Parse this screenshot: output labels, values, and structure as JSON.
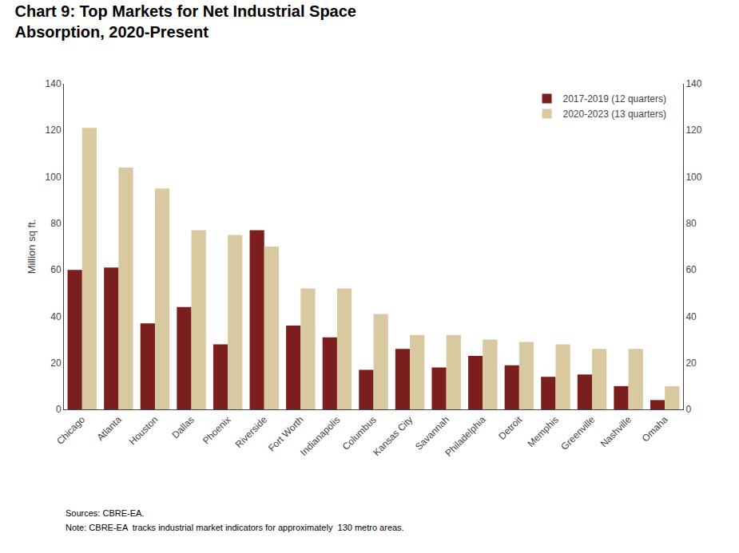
{
  "chart_data": {
    "type": "bar",
    "title": "Chart 9: Top Markets for Net Industrial Space",
    "subtitle": "Absorption, 2020-Present",
    "categories": [
      "Chicago",
      "Atlanta",
      "Houston",
      "Dallas",
      "Phoenix",
      "Riverside",
      "Fort Worth",
      "Indianapolis",
      "Columbus",
      "Kansas City",
      "Savannah",
      "Philadelphia",
      "Detroit",
      "Memphis",
      "Greenville",
      "Nashville",
      "Omaha"
    ],
    "series": [
      {
        "name": "2017-2019 (12 quarters)",
        "color": "#7B1E1E",
        "values": [
          60,
          61,
          37,
          44,
          28,
          77,
          36,
          31,
          17,
          26,
          18,
          23,
          19,
          14,
          15,
          10,
          4
        ]
      },
      {
        "name": "2020-2023 (13 quarters)",
        "color": "#D9C9A0",
        "values": [
          121,
          104,
          95,
          77,
          75,
          70,
          52,
          52,
          41,
          32,
          32,
          30,
          29,
          28,
          26,
          26,
          10
        ]
      }
    ],
    "ylabel": "Million sq ft.",
    "ylim": [
      0,
      140
    ],
    "yticks": [
      0,
      20,
      40,
      60,
      80,
      100,
      120,
      140
    ],
    "y2lim": [
      0,
      140
    ],
    "y2ticks": [
      0,
      20,
      40,
      60,
      80,
      100,
      120,
      140
    ],
    "grid": false,
    "legend": "upper right",
    "annotations": [
      "Sources: CBRE-EA.",
      "Note: CBRE-EA  tracks industrial market indicators for approximately  130 metro areas."
    ]
  }
}
